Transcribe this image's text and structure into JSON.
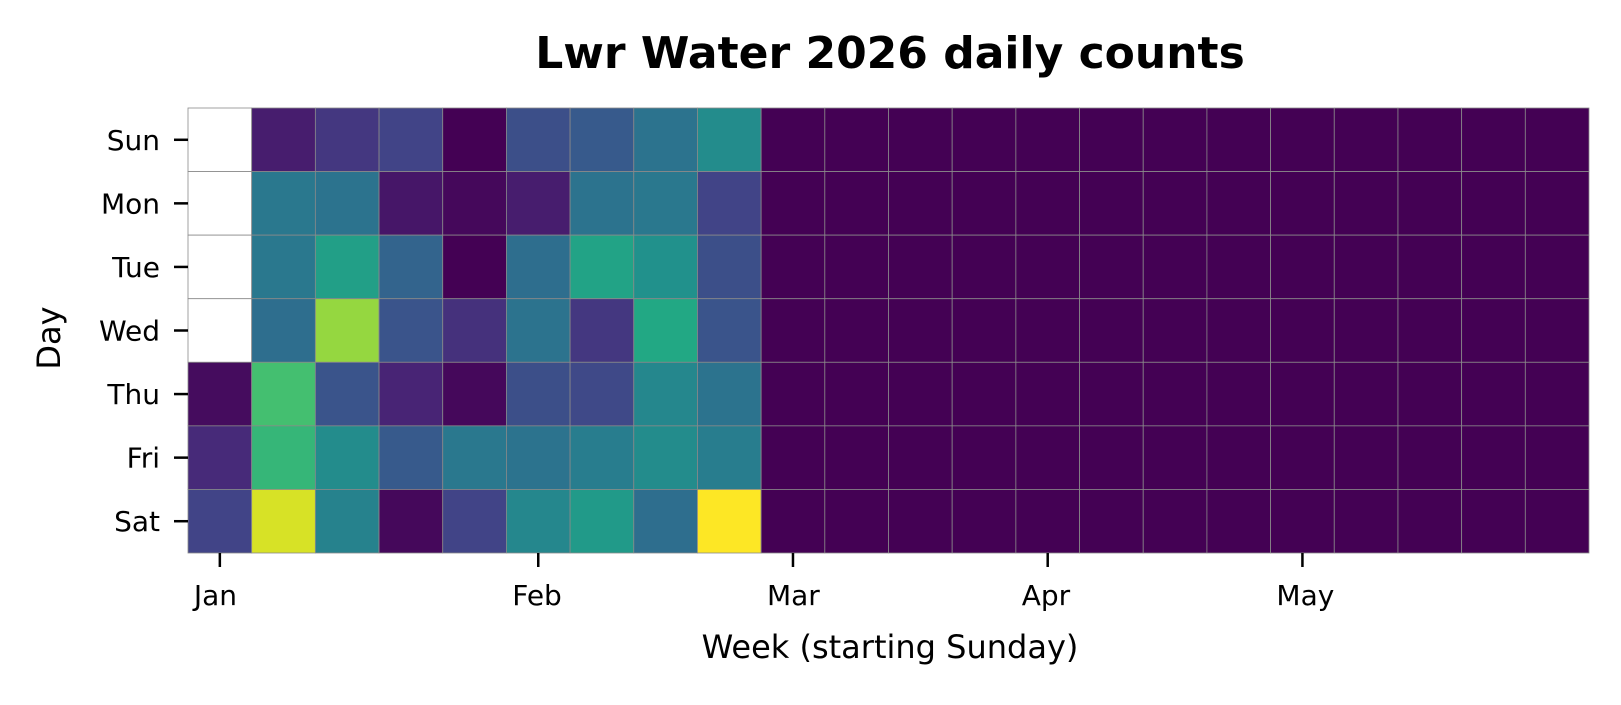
{
  "chart_data": {
    "type": "heatmap",
    "title": "Lwr Water 2026 daily counts",
    "xlabel": "Week (starting Sunday)",
    "ylabel": "Day",
    "colormap": "viridis",
    "rows": [
      "Sun",
      "Mon",
      "Tue",
      "Wed",
      "Thu",
      "Fri",
      "Sat"
    ],
    "n_weeks": 22,
    "month_ticks": [
      {
        "label": "Jan",
        "week": 0.5
      },
      {
        "label": "Feb",
        "week": 5.5
      },
      {
        "label": "Mar",
        "week": 9.5
      },
      {
        "label": "Apr",
        "week": 13.5
      },
      {
        "label": "May",
        "week": 17.5
      }
    ],
    "value_range": [
      0,
      1
    ],
    "values": [
      [
        null,
        0.08,
        0.16,
        0.2,
        0.0,
        0.24,
        0.28,
        0.38,
        0.48,
        0,
        0,
        0,
        0,
        0,
        0,
        0,
        0,
        0,
        0,
        0,
        0,
        0
      ],
      [
        null,
        0.4,
        0.38,
        0.06,
        0.02,
        0.08,
        0.38,
        0.4,
        0.2,
        0,
        0,
        0,
        0,
        0,
        0,
        0,
        0,
        0,
        0,
        0,
        0,
        0
      ],
      [
        null,
        0.4,
        0.56,
        0.32,
        0.0,
        0.36,
        0.58,
        0.5,
        0.24,
        0,
        0,
        0,
        0,
        0,
        0,
        0,
        0,
        0,
        0,
        0,
        0,
        0
      ],
      [
        null,
        0.36,
        0.84,
        0.26,
        0.14,
        0.38,
        0.16,
        0.6,
        0.26,
        0,
        0,
        0,
        0,
        0,
        0,
        0,
        0,
        0,
        0,
        0,
        0,
        0
      ],
      [
        0.03,
        0.7,
        0.26,
        0.1,
        0.02,
        0.24,
        0.22,
        0.46,
        0.38,
        0,
        0,
        0,
        0,
        0,
        0,
        0,
        0,
        0,
        0,
        0,
        0,
        0
      ],
      [
        0.12,
        0.66,
        0.48,
        0.28,
        0.4,
        0.38,
        0.42,
        0.48,
        0.42,
        0,
        0,
        0,
        0,
        0,
        0,
        0,
        0,
        0,
        0,
        0,
        0,
        0
      ],
      [
        0.2,
        0.94,
        0.44,
        0.02,
        0.2,
        0.46,
        0.54,
        0.36,
        1.0,
        0,
        0,
        0,
        0,
        0,
        0,
        0,
        0,
        0,
        0,
        0,
        0,
        0
      ]
    ]
  }
}
